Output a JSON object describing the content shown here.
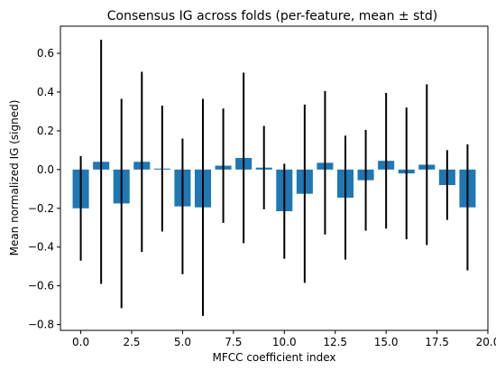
{
  "chart_data": {
    "type": "bar",
    "title": "Consensus IG across folds (per-feature, mean ± std)",
    "xlabel": "MFCC coefficient index",
    "ylabel": "Mean normalized IG (signed)",
    "xlim": [
      -1.0,
      20.0
    ],
    "ylim": [
      -0.83,
      0.74
    ],
    "xticks": [
      0.0,
      2.5,
      5.0,
      7.5,
      10.0,
      12.5,
      15.0,
      17.5,
      20.0
    ],
    "xtick_labels": [
      "0.0",
      "2.5",
      "5.0",
      "7.5",
      "10.0",
      "12.5",
      "15.0",
      "17.5",
      "20.0"
    ],
    "yticks": [
      -0.8,
      -0.6,
      -0.4,
      -0.2,
      0.0,
      0.2,
      0.4,
      0.6
    ],
    "ytick_labels": [
      "−0.8",
      "−0.6",
      "−0.4",
      "−0.2",
      "0.0",
      "0.2",
      "0.4",
      "0.6"
    ],
    "grid": false,
    "bar_color": "#1f77b4",
    "errorbar_color": "#000000",
    "x": [
      0,
      1,
      2,
      3,
      4,
      5,
      6,
      7,
      8,
      9,
      10,
      11,
      12,
      13,
      14,
      15,
      16,
      17,
      18,
      19
    ],
    "values": [
      -0.2,
      0.04,
      -0.175,
      0.04,
      0.005,
      -0.19,
      -0.195,
      0.02,
      0.06,
      0.01,
      -0.215,
      -0.125,
      0.035,
      -0.145,
      -0.055,
      0.045,
      -0.02,
      0.025,
      -0.08,
      -0.195
    ],
    "errors": [
      0.27,
      0.63,
      0.54,
      0.465,
      0.325,
      0.35,
      0.56,
      0.295,
      0.44,
      0.215,
      0.245,
      0.46,
      0.37,
      0.32,
      0.26,
      0.35,
      0.34,
      0.415,
      0.18,
      0.325
    ]
  }
}
